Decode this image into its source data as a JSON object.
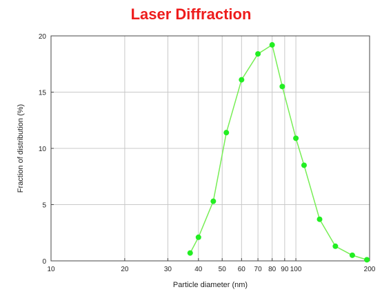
{
  "chart_data": {
    "type": "line",
    "title": "Laser Diffraction",
    "xlabel": "Particle diameter (nm)",
    "ylabel": "Fraction of distribution (%)",
    "x_scale": "log",
    "xlim": [
      10,
      200
    ],
    "ylim": [
      0,
      20
    ],
    "x_ticks": [
      10,
      20,
      30,
      40,
      50,
      60,
      70,
      80,
      90,
      100,
      200
    ],
    "x_tick_labels": [
      "10",
      "20",
      "30",
      "40",
      "50",
      "60",
      "70",
      "80",
      "90",
      "100",
      "200"
    ],
    "y_ticks": [
      0,
      5,
      10,
      15,
      20
    ],
    "y_tick_labels": [
      "0",
      "5",
      "10",
      "15",
      "20"
    ],
    "grid": true,
    "series_color": "#77ee55",
    "marker_color": "#22ee22",
    "title_color": "#ee1c1c",
    "series": [
      {
        "x": [
          37,
          40,
          46,
          52,
          60,
          70,
          80,
          88,
          100,
          108,
          125,
          145,
          170,
          195
        ],
        "y": [
          0.7,
          2.1,
          5.3,
          11.4,
          16.1,
          18.4,
          19.2,
          15.5,
          10.9,
          8.5,
          3.7,
          1.3,
          0.5,
          0.1
        ]
      }
    ]
  }
}
